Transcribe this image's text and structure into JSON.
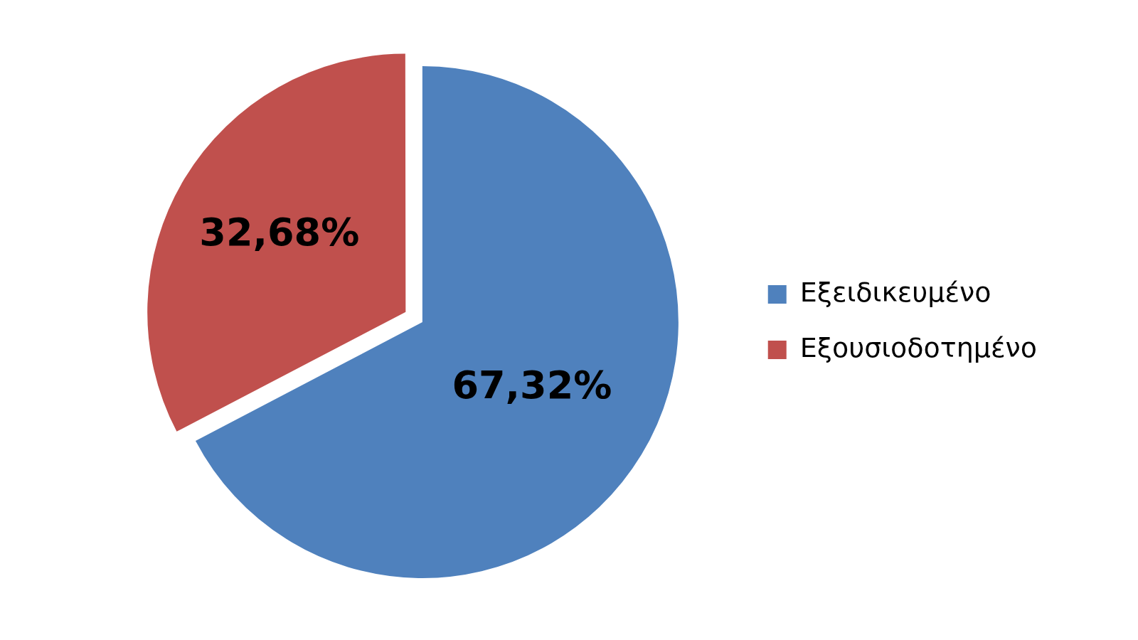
{
  "chart_data": {
    "type": "pie",
    "categories": [
      "Εξειδικευμένο",
      "Εξουσιοδοτημένο"
    ],
    "values": [
      67.32,
      32.68
    ],
    "colors": [
      "#4f81bd",
      "#c0504d"
    ],
    "value_labels": [
      "67,32%",
      "32,68%"
    ],
    "legend": "right"
  }
}
